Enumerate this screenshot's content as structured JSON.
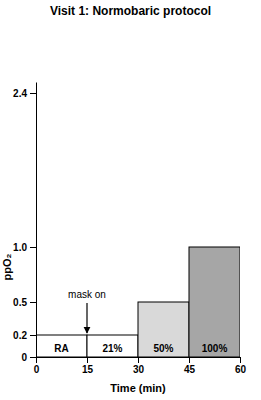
{
  "chart_data": {
    "type": "bar",
    "title": "Visit 1: Normobaric protocol",
    "x_label": "Time (min)",
    "y_label": "ppO₂",
    "bins": [
      0,
      15,
      30,
      45,
      60
    ],
    "categories": [
      "RA",
      "21%",
      "50%",
      "100%"
    ],
    "values": [
      0.2,
      0.2,
      0.5,
      1.0
    ],
    "colors": [
      "#ffffff",
      "#ffffff",
      "#d9d9d9",
      "#a6a6a6"
    ],
    "xlim": [
      0,
      60
    ],
    "xticks": [
      0,
      15,
      30,
      45,
      60
    ],
    "ylim": [
      0,
      2.5
    ],
    "yticks": [
      0,
      0.2,
      0.5,
      {
        "value": 1,
        "label": "1.0"
      },
      2.4
    ],
    "grid": false,
    "annotations": [
      {
        "text": "mask on",
        "x": 15,
        "y": 0.2
      }
    ]
  }
}
